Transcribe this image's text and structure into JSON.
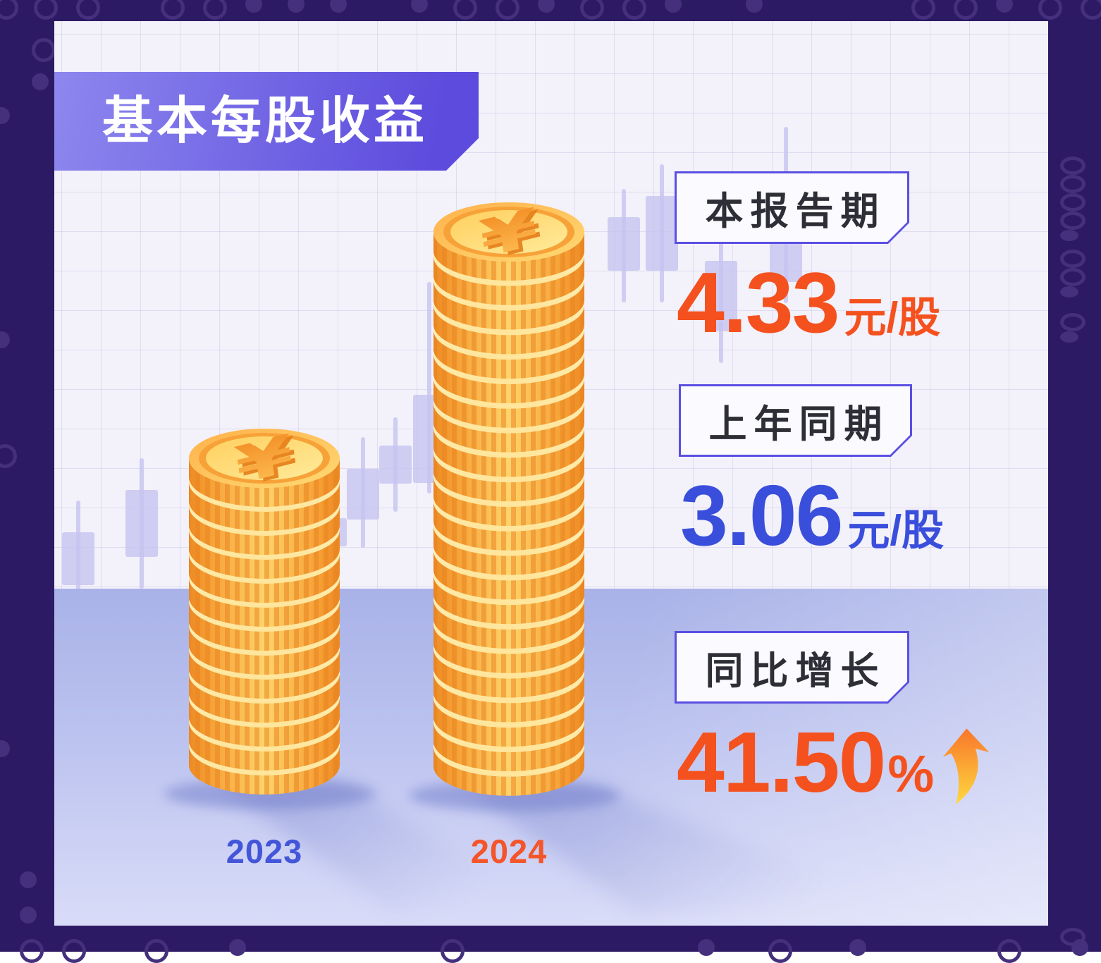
{
  "page": {
    "title": "基本每股收益"
  },
  "panels": {
    "current": {
      "label": "本报告期",
      "value": "4.33",
      "unit": "元/股"
    },
    "previous": {
      "label": "上年同期",
      "value": "3.06",
      "unit": "元/股"
    },
    "growth": {
      "label": "同比增长",
      "value": "41.50",
      "unit": "%"
    }
  },
  "x_labels": {
    "y2023": "2023",
    "y2024": "2024"
  },
  "colors": {
    "frame": "#2d1a64",
    "card_bg": "#f3f1fa",
    "floor": "#a9b2e8",
    "banner_from": "#8d87ee",
    "banner_to": "#5c4bdd",
    "box_border": "#5a4fe2",
    "accent_orange": "#f4511e",
    "accent_blue": "#3a4edc",
    "coin_gold": "#fbb84e"
  },
  "chart_data": {
    "type": "bar",
    "style": "pictorial coin stacks",
    "title": "基本每股收益",
    "categories": [
      "2023",
      "2024"
    ],
    "values": [
      3.06,
      4.33
    ],
    "unit": "元/股",
    "value_labels": [
      "3.06元/股",
      "4.33元/股"
    ],
    "current_period_label": "本报告期",
    "current_period_value": 4.33,
    "previous_period_label": "上年同期",
    "previous_period_value": 3.06,
    "yoy_growth_label": "同比增长",
    "yoy_growth_percent": 41.5,
    "legend": "none",
    "grid": "faint wall grid with candlestick motif background"
  }
}
